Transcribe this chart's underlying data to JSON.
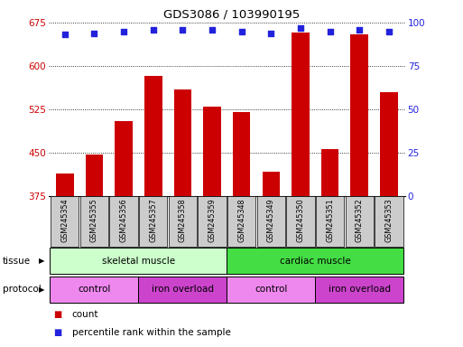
{
  "title": "GDS3086 / 103990195",
  "samples": [
    "GSM245354",
    "GSM245355",
    "GSM245356",
    "GSM245357",
    "GSM245358",
    "GSM245359",
    "GSM245348",
    "GSM245349",
    "GSM245350",
    "GSM245351",
    "GSM245352",
    "GSM245353"
  ],
  "counts": [
    415,
    447,
    505,
    583,
    560,
    530,
    520,
    418,
    658,
    457,
    655,
    555
  ],
  "percentile_ranks": [
    93,
    94,
    95,
    96,
    96,
    96,
    95,
    94,
    97,
    95,
    96,
    95
  ],
  "ylim_left": [
    375,
    675
  ],
  "ylim_right": [
    0,
    100
  ],
  "yticks_left": [
    375,
    450,
    525,
    600,
    675
  ],
  "yticks_right": [
    0,
    25,
    50,
    75,
    100
  ],
  "bar_color": "#cc0000",
  "dot_color": "#2222dd",
  "tissue_groups": [
    {
      "label": "skeletal muscle",
      "start": 0,
      "end": 6,
      "color": "#ccffcc"
    },
    {
      "label": "cardiac muscle",
      "start": 6,
      "end": 12,
      "color": "#44dd44"
    }
  ],
  "protocol_groups": [
    {
      "label": "control",
      "start": 0,
      "end": 3,
      "color": "#ee88ee"
    },
    {
      "label": "iron overload",
      "start": 3,
      "end": 6,
      "color": "#cc44cc"
    },
    {
      "label": "control",
      "start": 6,
      "end": 9,
      "color": "#ee88ee"
    },
    {
      "label": "iron overload",
      "start": 9,
      "end": 12,
      "color": "#cc44cc"
    }
  ],
  "legend_count_color": "#cc0000",
  "legend_dot_color": "#2222dd",
  "tick_label_color_left": "#cc0000",
  "tick_label_color_right": "#2222dd",
  "label_box_color": "#cccccc",
  "bar_width": 0.6,
  "dot_size": 22
}
